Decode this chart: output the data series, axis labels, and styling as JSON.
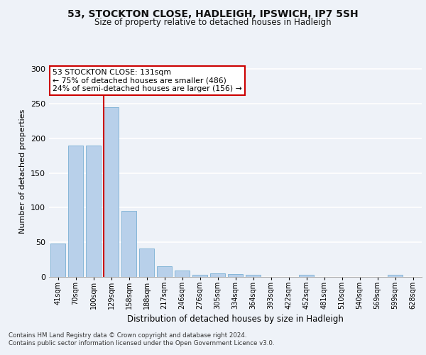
{
  "title1": "53, STOCKTON CLOSE, HADLEIGH, IPSWICH, IP7 5SH",
  "title2": "Size of property relative to detached houses in Hadleigh",
  "xlabel": "Distribution of detached houses by size in Hadleigh",
  "ylabel": "Number of detached properties",
  "categories": [
    "41sqm",
    "70sqm",
    "100sqm",
    "129sqm",
    "158sqm",
    "188sqm",
    "217sqm",
    "246sqm",
    "276sqm",
    "305sqm",
    "334sqm",
    "364sqm",
    "393sqm",
    "422sqm",
    "452sqm",
    "481sqm",
    "510sqm",
    "540sqm",
    "569sqm",
    "599sqm",
    "628sqm"
  ],
  "values": [
    48,
    190,
    190,
    245,
    95,
    41,
    15,
    9,
    3,
    5,
    4,
    3,
    0,
    0,
    3,
    0,
    0,
    0,
    0,
    3,
    0
  ],
  "bar_color": "#b8d0ea",
  "bar_edge_color": "#7aafd4",
  "annotation_text": "53 STOCKTON CLOSE: 131sqm\n← 75% of detached houses are smaller (486)\n24% of semi-detached houses are larger (156) →",
  "annotation_box_color": "#ffffff",
  "annotation_box_edge": "#cc0000",
  "red_line_color": "#cc0000",
  "footer_text": "Contains HM Land Registry data © Crown copyright and database right 2024.\nContains public sector information licensed under the Open Government Licence v3.0.",
  "ylim": [
    0,
    305
  ],
  "background_color": "#eef2f8",
  "grid_color": "#ffffff"
}
